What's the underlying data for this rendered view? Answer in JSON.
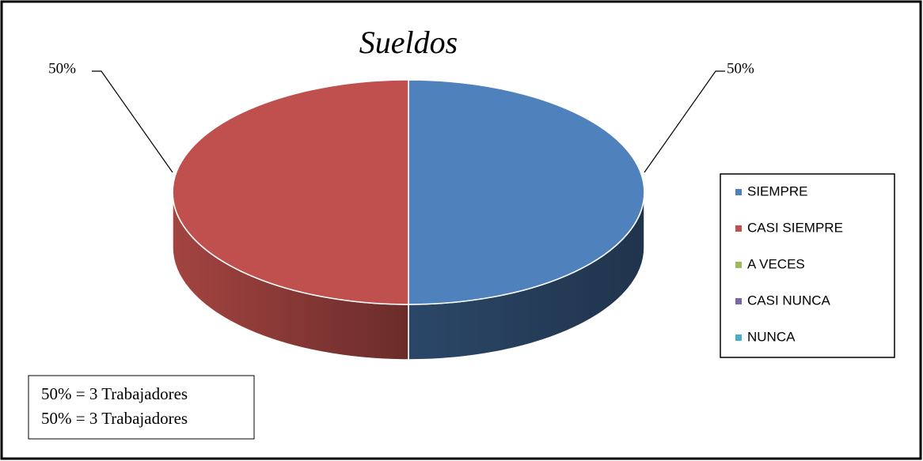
{
  "chart_data": {
    "type": "pie",
    "title": "Sueldos",
    "categories": [
      "SIEMPRE",
      "CASI SIEMPRE",
      "A VECES",
      "CASI NUNCA",
      "NUNCA"
    ],
    "values": [
      50,
      50,
      0,
      0,
      0
    ],
    "value_labels": [
      "50%",
      "50%",
      null,
      null,
      null
    ],
    "colors": [
      "#4f81bd",
      "#c0504d",
      "#9bbb59",
      "#8064a2",
      "#4bacc6"
    ],
    "legend": "right",
    "annotations": [
      "50% = 3 Trabajadores",
      "50% = 3 Trabajadores"
    ]
  }
}
